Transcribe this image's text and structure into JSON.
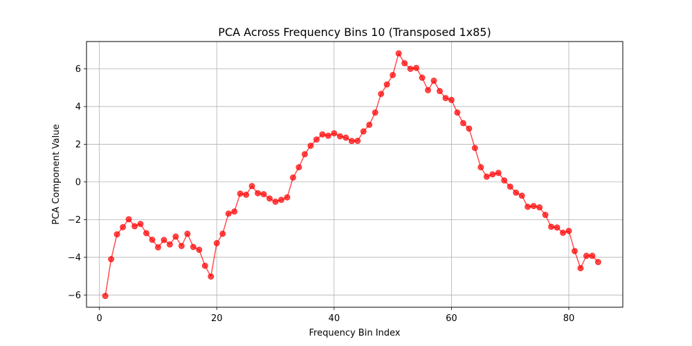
{
  "chart_data": {
    "type": "line",
    "title": "PCA Across Frequency Bins 10 (Transposed 1x85)",
    "xlabel": "Frequency Bin Index",
    "ylabel": "PCA Component Value",
    "xlim": [
      -2.2,
      89.2
    ],
    "ylim": [
      -6.65,
      7.45
    ],
    "xticks": [
      0,
      20,
      40,
      60,
      80
    ],
    "yticks": [
      -6,
      -4,
      -2,
      0,
      2,
      4,
      6
    ],
    "xtick_labels": [
      "0",
      "20",
      "40",
      "60",
      "80"
    ],
    "ytick_labels": [
      "−6",
      "−4",
      "−2",
      "0",
      "2",
      "4",
      "6"
    ],
    "grid": true,
    "legend": "none",
    "series": [
      {
        "color": "#ff0000",
        "x": [
          1,
          2,
          3,
          4,
          5,
          6,
          7,
          8,
          9,
          10,
          11,
          12,
          13,
          14,
          15,
          16,
          17,
          18,
          19,
          20,
          21,
          22,
          23,
          24,
          25,
          26,
          27,
          28,
          29,
          30,
          31,
          32,
          33,
          34,
          35,
          36,
          37,
          38,
          39,
          40,
          41,
          42,
          43,
          44,
          45,
          46,
          47,
          48,
          49,
          50,
          51,
          52,
          53,
          54,
          55,
          56,
          57,
          58,
          59,
          60,
          61,
          62,
          63,
          64,
          65,
          66,
          67,
          68,
          69,
          70,
          71,
          72,
          73,
          74,
          75,
          76,
          77,
          78,
          79,
          80,
          81,
          82,
          83,
          84,
          85
        ],
        "values": [
          -6.05,
          -4.1,
          -2.78,
          -2.4,
          -1.98,
          -2.35,
          -2.23,
          -2.72,
          -3.07,
          -3.47,
          -3.08,
          -3.32,
          -2.9,
          -3.4,
          -2.75,
          -3.45,
          -3.6,
          -4.45,
          -5.02,
          -3.25,
          -2.75,
          -1.68,
          -1.57,
          -0.62,
          -0.68,
          -0.22,
          -0.6,
          -0.65,
          -0.88,
          -1.05,
          -0.95,
          -0.82,
          0.23,
          0.78,
          1.47,
          1.92,
          2.25,
          2.52,
          2.45,
          2.58,
          2.42,
          2.35,
          2.17,
          2.18,
          2.68,
          3.03,
          3.68,
          4.67,
          5.17,
          5.67,
          6.82,
          6.3,
          6.0,
          6.05,
          5.53,
          4.87,
          5.37,
          4.82,
          4.45,
          4.35,
          3.68,
          3.12,
          2.83,
          1.8,
          0.78,
          0.28,
          0.4,
          0.48,
          0.08,
          -0.25,
          -0.57,
          -0.73,
          -1.32,
          -1.28,
          -1.35,
          -1.75,
          -2.38,
          -2.42,
          -2.7,
          -2.6,
          -3.67,
          -4.58,
          -3.92,
          -3.92,
          -4.25
        ]
      }
    ]
  }
}
